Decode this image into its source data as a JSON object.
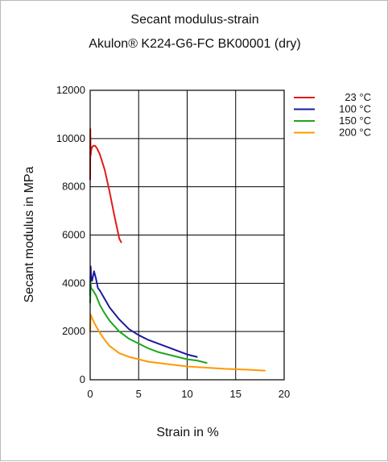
{
  "chart_data": {
    "type": "line",
    "title": "Secant modulus-strain",
    "subtitle": "Akulon® K224-G6-FC BK00001 (dry)",
    "xlabel": "Strain in %",
    "ylabel": "Secant modulus in MPa",
    "xlim": [
      0,
      20
    ],
    "ylim": [
      0,
      12000
    ],
    "xticks": [
      0,
      5,
      10,
      15,
      20
    ],
    "yticks": [
      0,
      2000,
      4000,
      6000,
      8000,
      10000,
      12000
    ],
    "grid": true,
    "legend_position": "right",
    "series": [
      {
        "name": "23 °C",
        "color": "#e31a1c",
        "x": [
          0.0,
          0.02,
          0.05,
          0.1,
          0.2,
          0.35,
          0.5,
          0.7,
          1.0,
          1.5,
          2.0,
          2.5,
          3.0,
          3.2
        ],
        "y": [
          8300,
          10400,
          9300,
          9500,
          9650,
          9700,
          9700,
          9600,
          9350,
          8700,
          7800,
          6800,
          5850,
          5700
        ]
      },
      {
        "name": "100 °C",
        "color": "#1a1aa0",
        "x": [
          0.0,
          0.05,
          0.1,
          0.2,
          0.4,
          0.6,
          0.8,
          1.0,
          1.5,
          2.0,
          3.0,
          4.0,
          5.0,
          6.0,
          7.0,
          8.0,
          9.0,
          10.0,
          11.0
        ],
        "y": [
          3500,
          4700,
          4300,
          4100,
          4500,
          4200,
          3800,
          3700,
          3350,
          3000,
          2500,
          2100,
          1850,
          1650,
          1500,
          1350,
          1200,
          1050,
          950
        ]
      },
      {
        "name": "150 °C",
        "color": "#1fa51f",
        "x": [
          0.0,
          0.05,
          0.1,
          0.3,
          0.6,
          1.0,
          1.5,
          2.0,
          3.0,
          4.0,
          5.0,
          6.0,
          7.0,
          8.0,
          9.0,
          10.0,
          11.0,
          12.0
        ],
        "y": [
          3200,
          4000,
          3800,
          3700,
          3500,
          3100,
          2750,
          2450,
          2000,
          1700,
          1500,
          1300,
          1150,
          1050,
          950,
          850,
          800,
          700
        ]
      },
      {
        "name": "200 °C",
        "color": "#ff9900",
        "x": [
          0.0,
          0.05,
          0.2,
          0.5,
          1.0,
          1.5,
          2.0,
          3.0,
          4.0,
          5.0,
          6.0,
          8.0,
          10.0,
          12.0,
          14.0,
          16.0,
          18.0
        ],
        "y": [
          2000,
          2700,
          2550,
          2300,
          1950,
          1650,
          1400,
          1100,
          950,
          850,
          750,
          650,
          550,
          500,
          450,
          420,
          380
        ]
      }
    ]
  }
}
